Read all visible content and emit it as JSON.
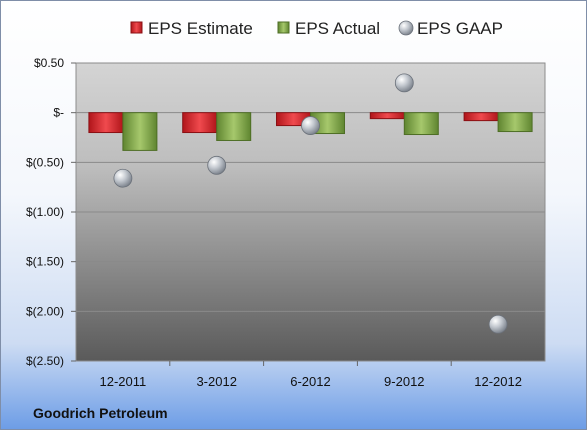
{
  "chart_data": {
    "type": "bar",
    "categories": [
      "12-2011",
      "3-2012",
      "6-2012",
      "9-2012",
      "12-2012"
    ],
    "series": [
      {
        "name": "EPS Estimate",
        "kind": "bar",
        "values": [
          -0.2,
          -0.2,
          -0.13,
          -0.06,
          -0.08
        ]
      },
      {
        "name": "EPS Actual",
        "kind": "bar",
        "values": [
          -0.38,
          -0.28,
          -0.21,
          -0.22,
          -0.19
        ]
      },
      {
        "name": "EPS GAAP",
        "kind": "scatter",
        "values": [
          -0.66,
          -0.53,
          -0.13,
          0.3,
          -2.13
        ]
      }
    ],
    "yticks": [
      {
        "value": 0.5,
        "label": "$0.50"
      },
      {
        "value": 0,
        "label": "$-"
      },
      {
        "value": -0.5,
        "label": "$(0.50)"
      },
      {
        "value": -1.0,
        "label": "$(1.00)"
      },
      {
        "value": -1.5,
        "label": "$(1.50)"
      },
      {
        "value": -2.0,
        "label": "$(2.00)"
      },
      {
        "value": -2.5,
        "label": "$(2.50)"
      }
    ],
    "ylim": [
      -2.5,
      0.5
    ],
    "grid": true,
    "legend": "top",
    "colors": {
      "estimate": "#e0262b",
      "actual": "#86ad4c",
      "gaap": "#b6bcc4"
    },
    "footer": "Goodrich Petroleum"
  }
}
